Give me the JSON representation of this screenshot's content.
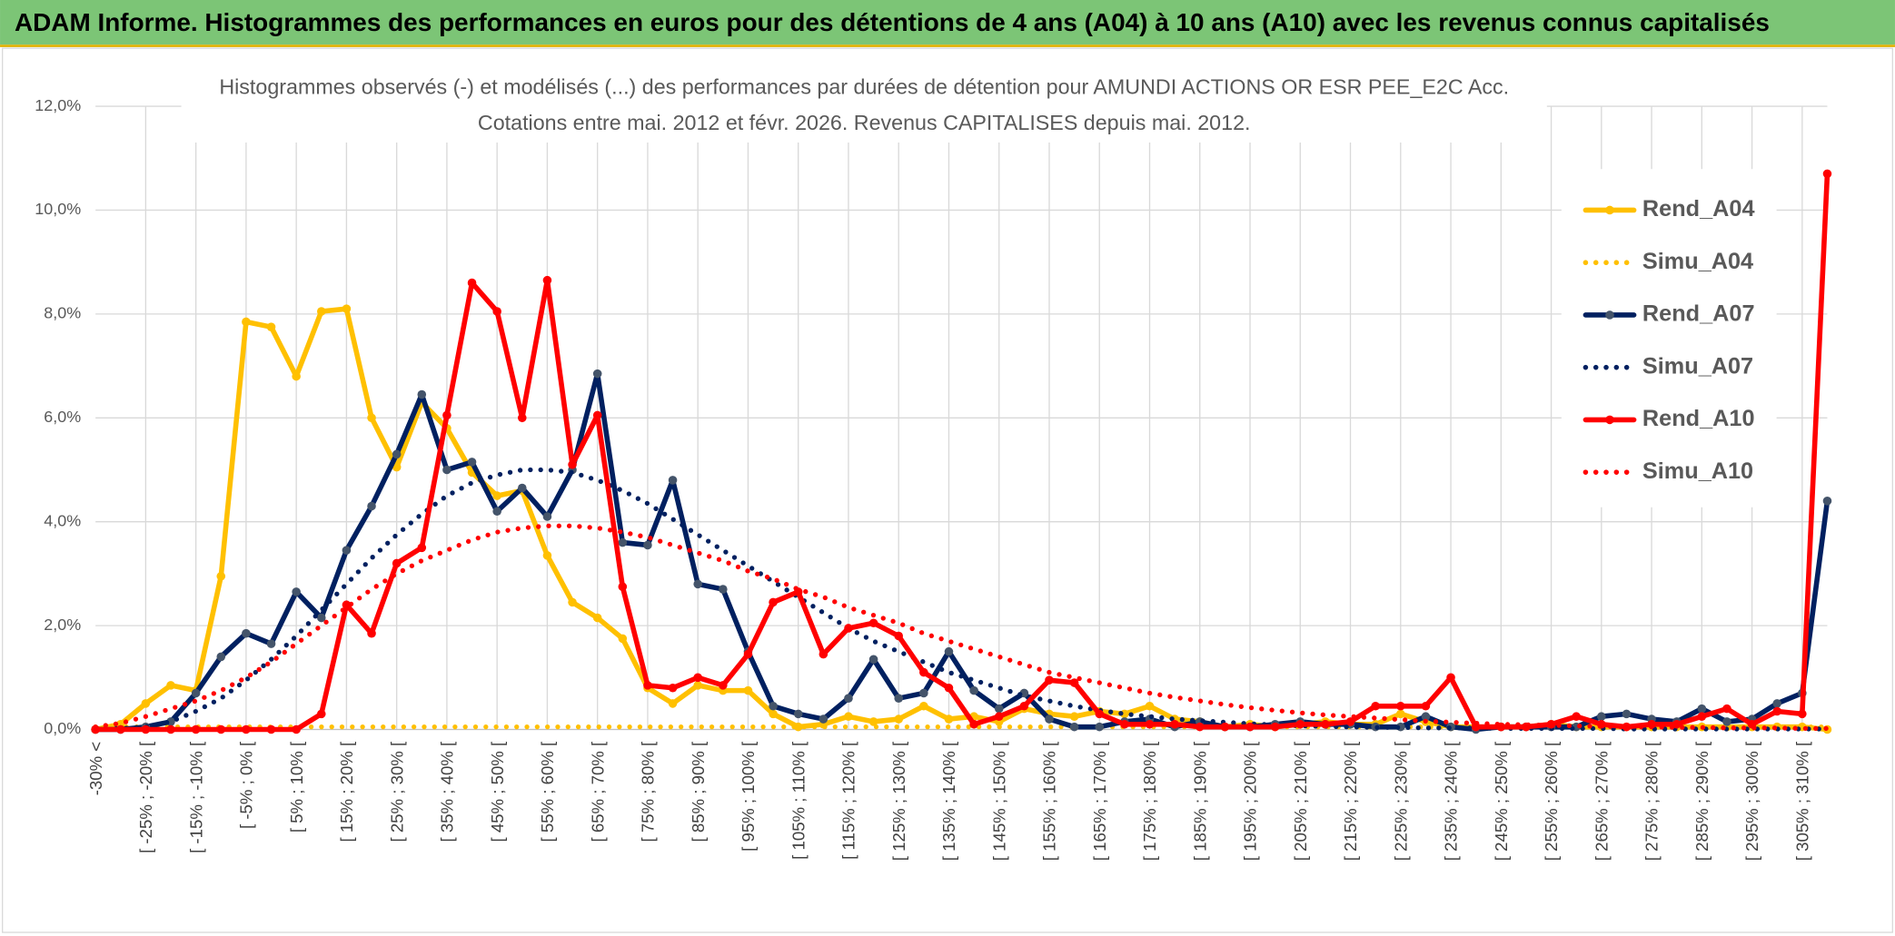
{
  "chart_data": {
    "type": "line",
    "header": "ADAM Informe. Histogrammes des performances en euros pour des détentions de 4 ans (A04) à 10 ans (A10) avec les revenus connus capitalisés",
    "title": "Histogrammes observés (-) et modélisés (...) des performances par durées de détention pour AMUNDI ACTIONS OR ESR PEE_E2C Acc.",
    "subtitle": "Cotations entre mai. 2012 et févr. 2026. Revenus CAPITALISES depuis mai. 2012.",
    "categories": [
      "-30% <",
      null,
      "[ -25% ; -20% [",
      null,
      "[ -15% ; -10% [",
      null,
      "[ -5% ; 0% [",
      null,
      "[ 5% ; 10% [",
      null,
      "[ 15% ; 20% [",
      null,
      "[ 25% ; 30% [",
      null,
      "[ 35% ; 40% [",
      null,
      "[ 45% ; 50% [",
      null,
      "[ 55% ; 60% [",
      null,
      "[ 65% ; 70% [",
      null,
      "[ 75% ; 80% [",
      null,
      "[ 85% ; 90% [",
      null,
      "[ 95% ; 100% [",
      null,
      "[ 105% ; 110% [",
      null,
      "[ 115% ; 120% [",
      null,
      "[ 125% ; 130% [",
      null,
      "[ 135% ; 140% [",
      null,
      "[ 145% ; 150% [",
      null,
      "[ 155% ; 160% [",
      null,
      "[ 165% ; 170% [",
      null,
      "[ 175% ; 180% [",
      null,
      "[ 185% ; 190% [",
      null,
      "[ 195% ; 200% [",
      null,
      "[ 205% ; 210% [",
      null,
      "[ 215% ; 220% [",
      null,
      "[ 225% ; 230% [",
      null,
      "[ 235% ; 240% [",
      null,
      "[ 245% ; 250% [",
      null,
      "[ 255% ; 260% [",
      null,
      "[ 265% ; 270% [",
      null,
      "[ 275% ; 280% [",
      null,
      "[ 285% ; 290% [",
      null,
      "[ 295% ; 300% [",
      null,
      "[ 305% ; 310% [",
      null
    ],
    "series": [
      {
        "name": "Rend_A04",
        "color": "#ffc000",
        "line_style": "solid",
        "markers": true,
        "values": [
          0,
          0.1,
          0.5,
          0.85,
          0.75,
          2.95,
          7.85,
          7.75,
          6.8,
          8.05,
          8.1,
          6.0,
          5.05,
          6.3,
          5.8,
          4.95,
          4.5,
          4.6,
          3.35,
          2.45,
          2.15,
          1.75,
          0.8,
          0.5,
          0.85,
          0.75,
          0.75,
          0.3,
          0.05,
          0.1,
          0.25,
          0.15,
          0.2,
          0.45,
          0.2,
          0.25,
          0.15,
          0.4,
          0.3,
          0.25,
          0.35,
          0.3,
          0.45,
          0.2,
          0.15,
          0.05,
          0.1,
          0.05,
          0.1,
          0.15,
          0.1,
          0.1,
          0.3,
          0.15,
          0.05,
          0.05,
          0.05,
          0.05,
          0.1,
          0.05,
          0.05,
          0.05,
          0.05,
          0.05,
          0.05,
          0.05,
          0.05,
          0.05,
          0.05,
          0
        ]
      },
      {
        "name": "Simu_A04",
        "color": "#ffc000",
        "line_style": "dotted",
        "markers": false,
        "values": [
          0.05,
          0.05,
          0.05,
          0.05,
          0.05,
          0.05,
          0.05,
          0.05,
          0.05,
          0.05,
          0.05,
          0.05,
          0.05,
          0.05,
          0.05,
          0.05,
          0.05,
          0.05,
          0.05,
          0.05,
          0.05,
          0.05,
          0.05,
          0.05,
          0.05,
          0.05,
          0.05,
          0.05,
          0.05,
          0.05,
          0.05,
          0.05,
          0.05,
          0.05,
          0.05,
          0.05,
          0.05,
          0.05,
          0.05,
          0.05,
          0.05,
          0.05,
          0.05,
          0.05,
          0.05,
          0.05,
          0.05,
          0.05,
          0.05,
          0.05,
          0.05,
          0.05,
          0.05,
          0.05,
          0.05,
          0.05,
          0.05,
          0.05,
          0.05,
          0.05,
          0.05,
          0.05,
          0.05,
          0.05,
          0.05,
          0.05,
          0.05,
          0.05,
          0.05,
          0.05
        ]
      },
      {
        "name": "Rend_A07",
        "color": "#002060",
        "line_style": "solid",
        "markers": true,
        "values": [
          0,
          0,
          0.05,
          0.15,
          0.7,
          1.4,
          1.85,
          1.65,
          2.65,
          2.15,
          3.45,
          4.3,
          5.3,
          6.45,
          5.0,
          5.15,
          4.2,
          4.65,
          4.1,
          5.0,
          6.85,
          3.6,
          3.55,
          4.8,
          2.8,
          2.7,
          1.5,
          0.45,
          0.3,
          0.2,
          0.6,
          1.35,
          0.6,
          0.7,
          1.5,
          0.75,
          0.4,
          0.7,
          0.2,
          0.05,
          0.05,
          0.15,
          0.2,
          0.05,
          0.15,
          0.05,
          0.05,
          0.1,
          0.15,
          0.1,
          0.1,
          0.05,
          0.05,
          0.25,
          0.05,
          0,
          0.05,
          0.05,
          0.05,
          0.05,
          0.25,
          0.3,
          0.2,
          0.15,
          0.4,
          0.15,
          0.2,
          0.5,
          0.7,
          4.4
        ]
      },
      {
        "name": "Simu_A07",
        "color": "#002060",
        "line_style": "dotted",
        "markers": false,
        "values": [
          0,
          0.02,
          0.05,
          0.15,
          0.35,
          0.6,
          0.95,
          1.35,
          1.8,
          2.3,
          2.8,
          3.3,
          3.75,
          4.15,
          4.5,
          4.75,
          4.9,
          5.0,
          5.0,
          4.95,
          4.8,
          4.6,
          4.35,
          4.05,
          3.75,
          3.45,
          3.15,
          2.85,
          2.55,
          2.25,
          1.95,
          1.7,
          1.5,
          1.3,
          1.1,
          0.95,
          0.8,
          0.65,
          0.55,
          0.45,
          0.37,
          0.3,
          0.25,
          0.2,
          0.17,
          0.14,
          0.11,
          0.09,
          0.07,
          0.06,
          0.05,
          0.04,
          0.04,
          0.03,
          0.03,
          0.03,
          0.02,
          0.02,
          0.02,
          0.02,
          0.02,
          0.01,
          0.01,
          0.01,
          0.01,
          0.01,
          0.01,
          0.01,
          0.01,
          0.01
        ]
      },
      {
        "name": "Rend_A10",
        "color": "#ff0000",
        "line_style": "solid",
        "markers": true,
        "values": [
          0,
          0,
          0,
          0,
          0,
          0,
          0,
          0,
          0,
          0.3,
          2.4,
          1.85,
          3.2,
          3.5,
          6.05,
          8.6,
          8.05,
          6.0,
          8.65,
          5.1,
          6.05,
          2.75,
          0.85,
          0.8,
          1.0,
          0.85,
          1.45,
          2.45,
          2.65,
          1.45,
          1.95,
          2.05,
          1.8,
          1.1,
          0.8,
          0.1,
          0.25,
          0.45,
          0.95,
          0.9,
          0.3,
          0.1,
          0.1,
          0.1,
          0.05,
          0.05,
          0.05,
          0.05,
          0.1,
          0.1,
          0.15,
          0.45,
          0.45,
          0.45,
          1.0,
          0.05,
          0.05,
          0.05,
          0.1,
          0.25,
          0.1,
          0.05,
          0.1,
          0.1,
          0.25,
          0.4,
          0.1,
          0.35,
          0.3,
          10.7
        ]
      },
      {
        "name": "Simu_A10",
        "color": "#ff0000",
        "line_style": "dotted",
        "markers": false,
        "values": [
          0.05,
          0.12,
          0.25,
          0.4,
          0.55,
          0.75,
          1.0,
          1.3,
          1.65,
          2.0,
          2.35,
          2.7,
          3.0,
          3.25,
          3.45,
          3.65,
          3.8,
          3.88,
          3.92,
          3.92,
          3.88,
          3.8,
          3.7,
          3.55,
          3.4,
          3.25,
          3.05,
          2.9,
          2.7,
          2.55,
          2.35,
          2.2,
          2.05,
          1.85,
          1.7,
          1.55,
          1.4,
          1.25,
          1.1,
          1.0,
          0.9,
          0.8,
          0.7,
          0.62,
          0.55,
          0.48,
          0.42,
          0.37,
          0.32,
          0.28,
          0.25,
          0.22,
          0.19,
          0.16,
          0.14,
          0.12,
          0.1,
          0.09,
          0.08,
          0.07,
          0.06,
          0.05,
          0.05,
          0.04,
          0.04,
          0.03,
          0.03,
          0.03,
          0.02,
          0.02
        ]
      }
    ],
    "ylim": [
      0,
      12
    ],
    "yticks": [
      {
        "value": 0,
        "label": "0,0%"
      },
      {
        "value": 2,
        "label": "2,0%"
      },
      {
        "value": 4,
        "label": "4,0%"
      },
      {
        "value": 6,
        "label": "6,0%"
      },
      {
        "value": 8,
        "label": "8,0%"
      },
      {
        "value": 10,
        "label": "10,0%"
      },
      {
        "value": 12,
        "label": "12,0%"
      }
    ],
    "grid": true,
    "legend": "right"
  }
}
